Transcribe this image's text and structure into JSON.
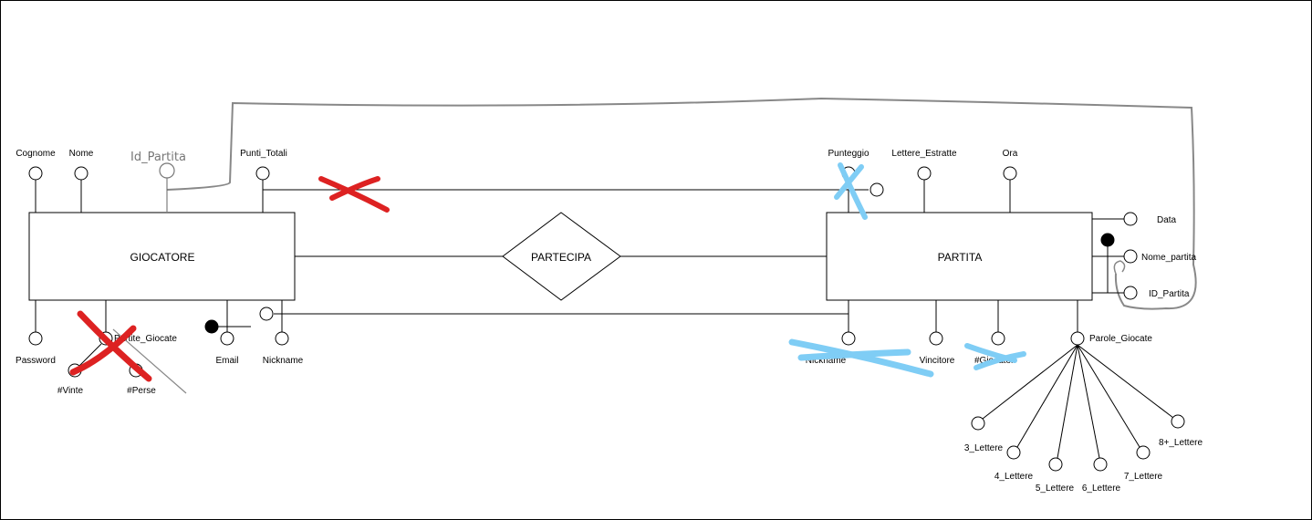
{
  "entities": {
    "giocatore": "GIOCATORE",
    "partita": "PARTITA"
  },
  "relationship": "PARTECIPA",
  "giocatore_attributes": {
    "cognome": "Cognome",
    "nome": "Nome",
    "punti_totali": "Punti_Totali",
    "password": "Password",
    "partite_giocate": "Partite_Giocate",
    "vinte": "#Vinte",
    "perse": "#Perse",
    "email": "Email",
    "nickname": "Nickname",
    "handwritten_id": "Id_Partita"
  },
  "partita_attributes": {
    "punteggio": "Punteggio",
    "lettere_estratte": "Lettere_Estratte",
    "ora": "Ora",
    "data": "Data",
    "nome_partita": "Nome_partita",
    "id_partita": "ID_Partita",
    "nickname": "Nickname",
    "vincitore": "Vincitore",
    "giocatori": "#Giocatori",
    "parole_giocate": "Parole_Giocate"
  },
  "parole_giocate_sub": {
    "l3": "3_Lettere",
    "l4": "4_Lettere",
    "l5": "5_Lettere",
    "l6": "6_Lettere",
    "l7": "7_Lettere",
    "l8": "8+_Lettere"
  },
  "colors": {
    "line": "#000000",
    "red_mark": "#dd2222",
    "blue_mark": "#7fcdf5",
    "pencil": "#888888"
  }
}
